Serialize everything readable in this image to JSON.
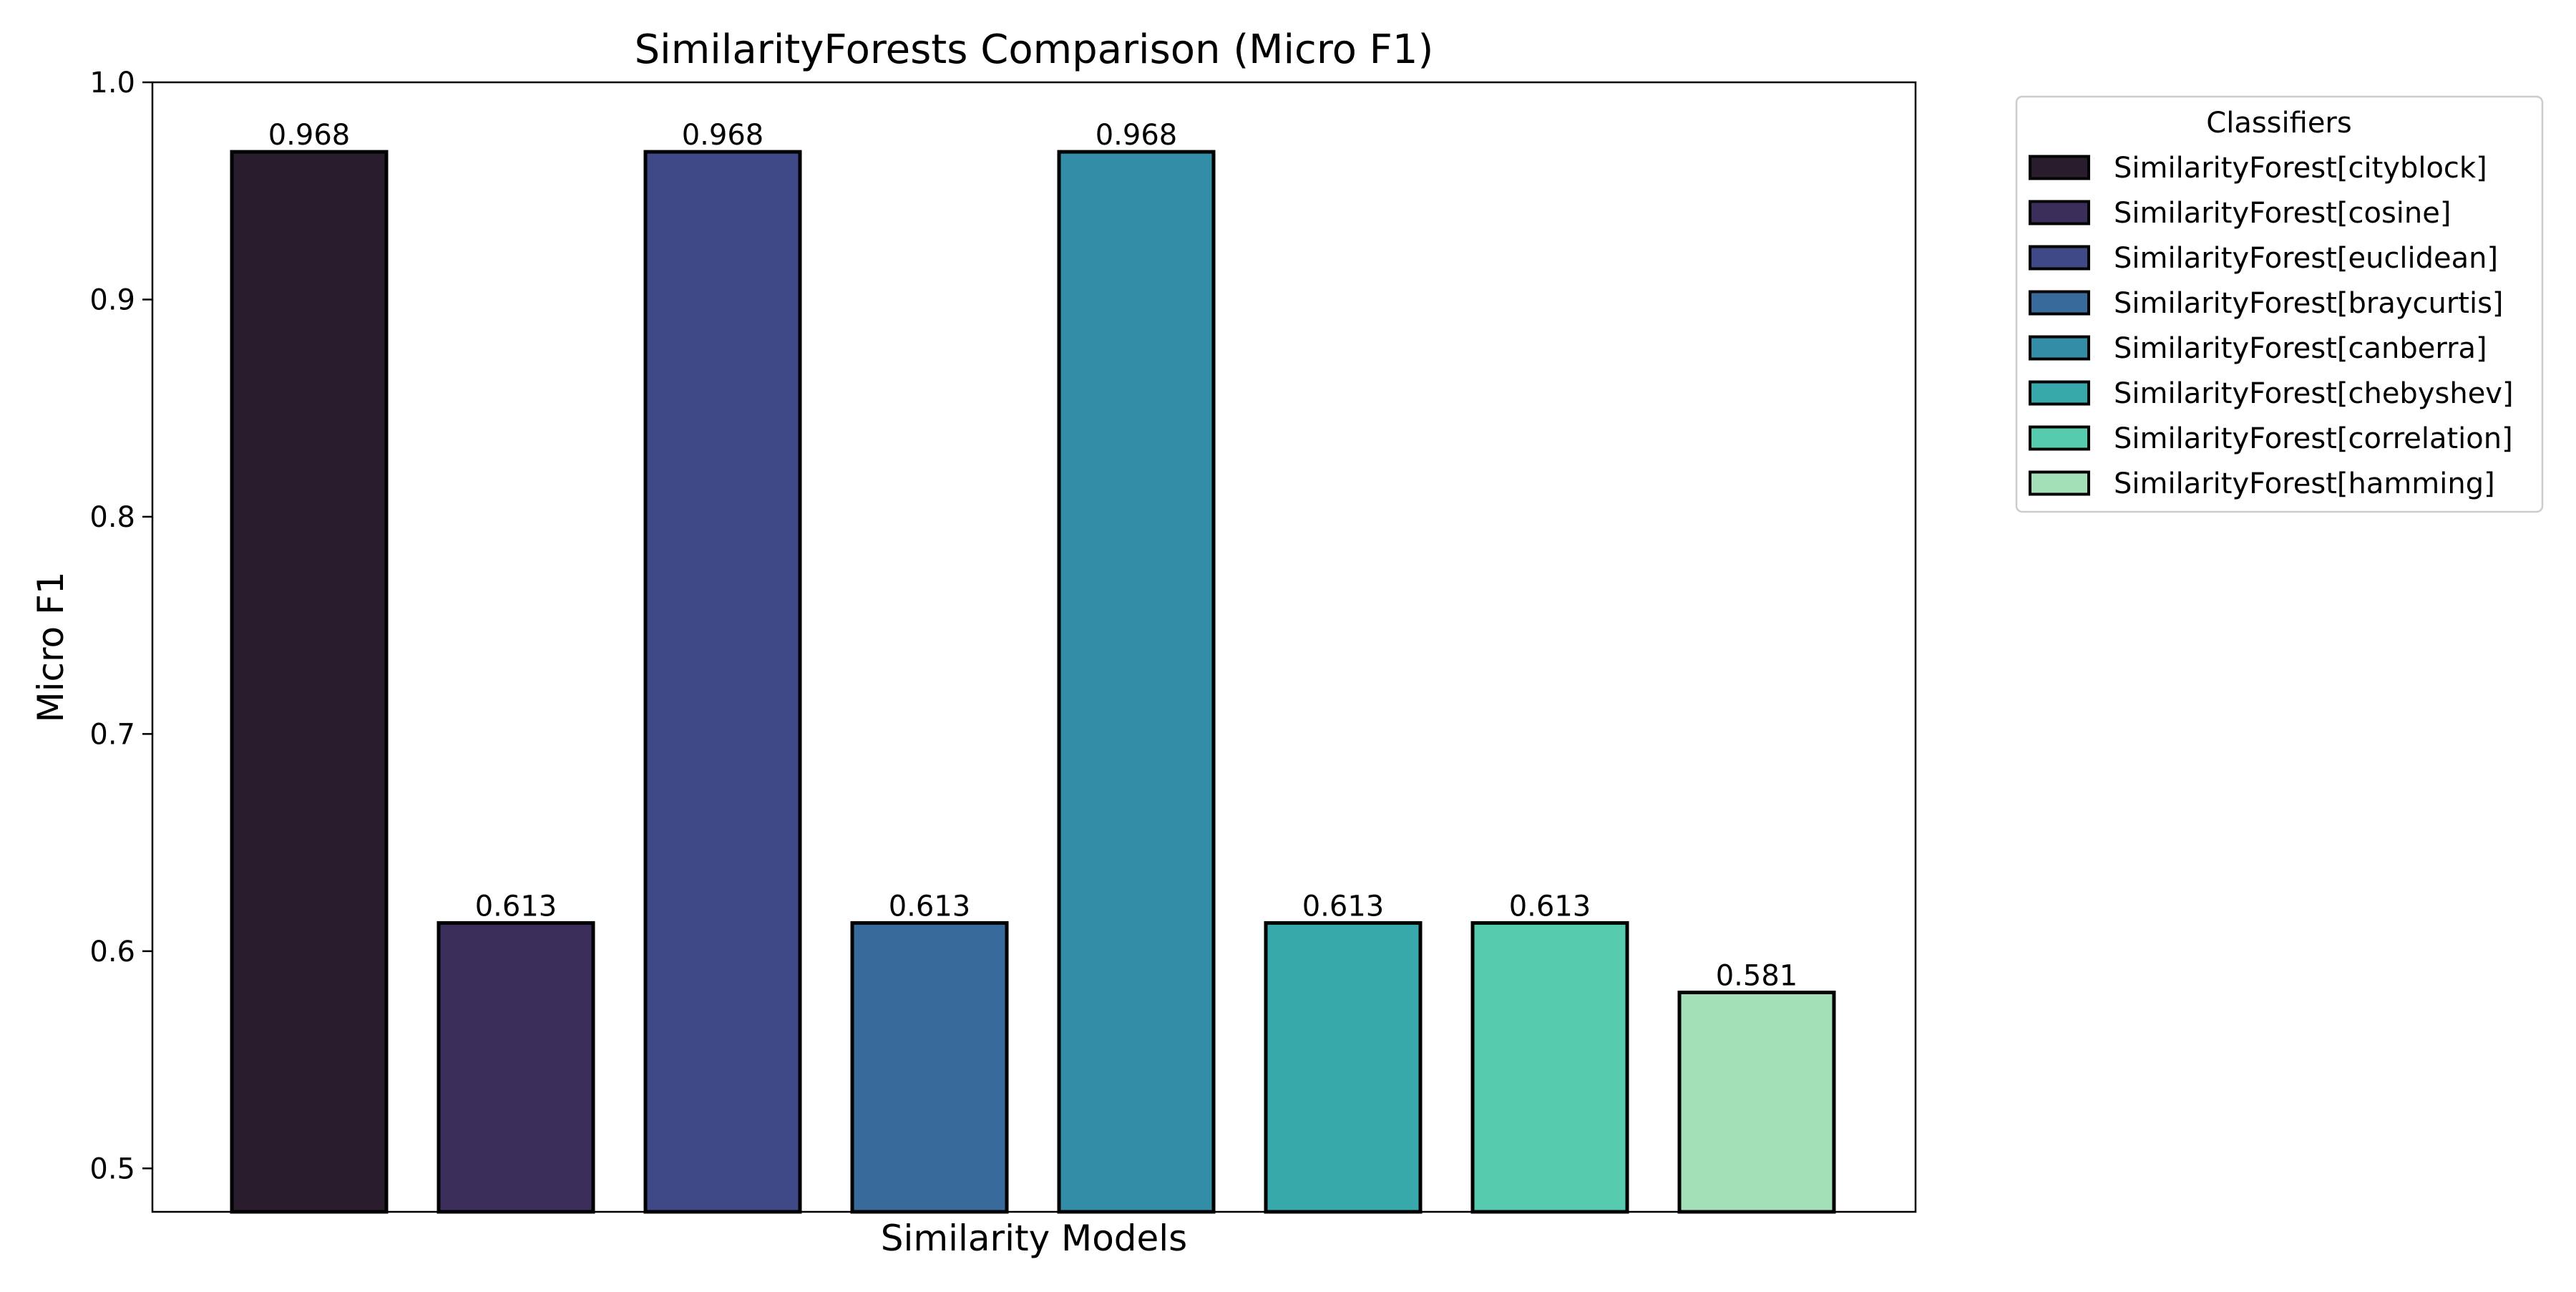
{
  "chart_data": {
    "type": "bar",
    "title": "SimilarityForests Comparison (Micro F1)",
    "xlabel": "Similarity Models",
    "ylabel": "Micro F1",
    "ylim": [
      0.48,
      1.0
    ],
    "yticks": [
      0.5,
      0.6,
      0.7,
      0.8,
      0.9,
      1.0
    ],
    "ytick_labels": [
      "0.5",
      "0.6",
      "0.7",
      "0.8",
      "0.9",
      "1.0"
    ],
    "grid": false,
    "legend": {
      "title": "Classifiers",
      "placement": "outside-top-right"
    },
    "categories": [
      "SimilarityForest[cityblock]",
      "SimilarityForest[cosine]",
      "SimilarityForest[euclidean]",
      "SimilarityForest[braycurtis]",
      "SimilarityForest[canberra]",
      "SimilarityForest[chebyshev]",
      "SimilarityForest[correlation]",
      "SimilarityForest[hamming]"
    ],
    "values": [
      0.968,
      0.613,
      0.968,
      0.613,
      0.968,
      0.613,
      0.613,
      0.581
    ],
    "value_labels": [
      "0.968",
      "0.613",
      "0.968",
      "0.613",
      "0.968",
      "0.613",
      "0.613",
      "0.581"
    ],
    "colors": [
      "#291c2d",
      "#3c2e5b",
      "#3f4988",
      "#386a9c",
      "#348da6",
      "#37a9ab",
      "#57cbae",
      "#a3e0b8"
    ],
    "edge_color": "#000000"
  }
}
